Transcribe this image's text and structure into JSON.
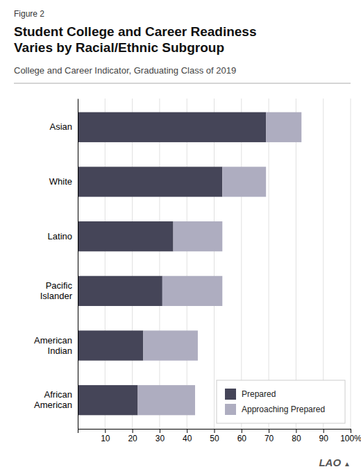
{
  "chart_data": {
    "type": "bar",
    "orientation": "horizontal",
    "stacked": true,
    "title": "Student College and Career Readiness\nVaries by Racial/Ethnic Subgroup",
    "subtitle": "College and Career Indicator, Graduating Class of 2019",
    "annotations": [
      "Figure 2",
      "LAO",
      "▲"
    ],
    "categories": [
      "Asian",
      "White",
      "Latino",
      "Pacific\nIslander",
      "American\nIndian",
      "African\nAmerican"
    ],
    "series": [
      {
        "name": "Prepared",
        "color": "#454558",
        "values": [
          69,
          53,
          35,
          31,
          24,
          22
        ]
      },
      {
        "name": "Approaching Prepared",
        "color": "#aeadc0",
        "values": [
          13,
          16,
          18,
          22,
          20,
          21
        ]
      }
    ],
    "xlim": [
      0,
      100
    ],
    "xticks": [
      10,
      20,
      30,
      40,
      50,
      60,
      70,
      80,
      90,
      {
        "value": 100,
        "label": "100%"
      }
    ],
    "grid": true,
    "legend": "lower right"
  }
}
